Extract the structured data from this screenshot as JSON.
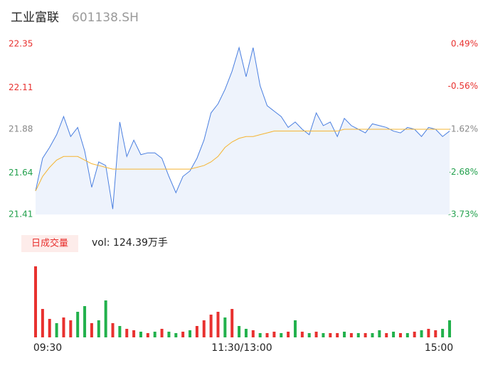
{
  "header": {
    "name": "工业富联",
    "code": "601138.SH"
  },
  "chart_data": {
    "type": "intraday",
    "yticks": [
      22.35,
      22.11,
      21.88,
      21.64,
      21.41
    ],
    "ylim": [
      21.41,
      22.35
    ],
    "y2ticks": [
      {
        "value": 0.49,
        "label": "0.49%"
      },
      {
        "value": -0.56,
        "label": "-0.56%"
      },
      {
        "value": -1.62,
        "label": "-1.62%"
      },
      {
        "value": -2.68,
        "label": "-2.68%"
      },
      {
        "value": -3.73,
        "label": "-3.73%"
      }
    ],
    "y2lim": [
      -3.73,
      0.49
    ],
    "series": [
      {
        "name": "price",
        "color": "#4a7fe0",
        "values": [
          21.54,
          21.72,
          21.78,
          21.85,
          21.95,
          21.84,
          21.89,
          21.76,
          21.56,
          21.7,
          21.68,
          21.44,
          21.92,
          21.73,
          21.82,
          21.74,
          21.75,
          21.75,
          21.72,
          21.62,
          21.53,
          21.62,
          21.65,
          21.72,
          21.82,
          21.97,
          22.02,
          22.1,
          22.2,
          22.33,
          22.17,
          22.33,
          22.12,
          22.01,
          21.98,
          21.95,
          21.89,
          21.92,
          21.88,
          21.85,
          21.97,
          21.9,
          21.92,
          21.84,
          21.94,
          21.9,
          21.88,
          21.86,
          21.91,
          21.9,
          21.89,
          21.87,
          21.86,
          21.89,
          21.88,
          21.84,
          21.89,
          21.88,
          21.84,
          21.87
        ]
      },
      {
        "name": "average",
        "color": "#f5b431",
        "values": [
          21.54,
          21.62,
          21.67,
          21.71,
          21.73,
          21.73,
          21.73,
          21.71,
          21.69,
          21.68,
          21.67,
          21.66,
          21.66,
          21.66,
          21.66,
          21.66,
          21.66,
          21.66,
          21.66,
          21.66,
          21.66,
          21.66,
          21.66,
          21.67,
          21.68,
          21.7,
          21.73,
          21.78,
          21.81,
          21.83,
          21.84,
          21.84,
          21.85,
          21.86,
          21.87,
          21.87,
          21.87,
          21.87,
          21.87,
          21.87,
          21.87,
          21.87,
          21.87,
          21.87,
          21.88,
          21.88,
          21.88,
          21.88,
          21.88,
          21.88,
          21.88,
          21.88,
          21.88,
          21.88,
          21.88,
          21.88,
          21.88,
          21.88,
          21.88,
          21.88
        ]
      }
    ],
    "volume_label": "日成交量",
    "volume_text": "vol: 124.39万手",
    "volume": {
      "ylim": [
        0,
        5
      ],
      "up_color": "#e8312f",
      "down_color": "#22b14c",
      "values": [
        5.0,
        2.0,
        1.3,
        1.0,
        1.4,
        1.2,
        1.8,
        2.2,
        1.0,
        1.2,
        2.6,
        1.0,
        0.8,
        0.6,
        0.5,
        0.4,
        0.3,
        0.4,
        0.6,
        0.4,
        0.3,
        0.4,
        0.5,
        0.8,
        1.2,
        1.6,
        1.8,
        1.4,
        2.0,
        0.8,
        0.6,
        0.5,
        0.3,
        0.3,
        0.4,
        0.3,
        0.4,
        1.2,
        0.4,
        0.3,
        0.4,
        0.3,
        0.3,
        0.3,
        0.4,
        0.3,
        0.3,
        0.3,
        0.3,
        0.5,
        0.3,
        0.4,
        0.3,
        0.3,
        0.4,
        0.5,
        0.6,
        0.5,
        0.6,
        1.2
      ],
      "directions": [
        "up",
        "up",
        "up",
        "down",
        "up",
        "up",
        "down",
        "down",
        "up",
        "down",
        "down",
        "up",
        "down",
        "up",
        "up",
        "down",
        "up",
        "down",
        "up",
        "down",
        "down",
        "up",
        "down",
        "up",
        "up",
        "up",
        "up",
        "down",
        "up",
        "down",
        "down",
        "up",
        "down",
        "up",
        "up",
        "down",
        "up",
        "down",
        "up",
        "down",
        "up",
        "down",
        "up",
        "up",
        "down",
        "up",
        "down",
        "up",
        "down",
        "down",
        "up",
        "down",
        "up",
        "down",
        "up",
        "down",
        "up",
        "up",
        "down",
        "down"
      ]
    },
    "time_labels": [
      "09:30",
      "11:30/13:00",
      "15:00"
    ]
  }
}
